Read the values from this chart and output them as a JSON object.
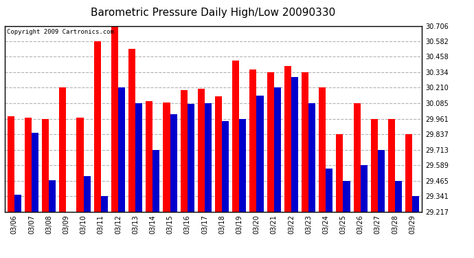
{
  "title": "Barometric Pressure Daily High/Low 20090330",
  "copyright": "Copyright 2009 Cartronics.com",
  "dates": [
    "03/06",
    "03/07",
    "03/08",
    "03/09",
    "03/10",
    "03/11",
    "03/12",
    "03/13",
    "03/14",
    "03/15",
    "03/16",
    "03/17",
    "03/18",
    "03/19",
    "03/20",
    "03/21",
    "03/22",
    "03/23",
    "03/24",
    "03/25",
    "03/26",
    "03/27",
    "03/28",
    "03/29"
  ],
  "highs": [
    29.98,
    29.97,
    29.96,
    30.21,
    29.97,
    30.582,
    30.706,
    30.52,
    30.1,
    30.09,
    30.19,
    30.2,
    30.14,
    30.43,
    30.355,
    30.334,
    30.385,
    30.334,
    30.21,
    29.837,
    30.085,
    29.961,
    29.961,
    29.837
  ],
  "lows": [
    29.35,
    29.85,
    29.47,
    29.217,
    29.5,
    29.341,
    30.21,
    30.085,
    29.713,
    30.0,
    30.08,
    30.085,
    29.94,
    29.961,
    30.145,
    30.21,
    30.295,
    30.085,
    29.56,
    29.465,
    29.589,
    29.713,
    29.465,
    29.341
  ],
  "high_color": "#ff0000",
  "low_color": "#0000cc",
  "bg_color": "#ffffff",
  "grid_color": "#aaaaaa",
  "ymin": 29.217,
  "ymax": 30.706,
  "yticks": [
    29.217,
    29.341,
    29.465,
    29.589,
    29.713,
    29.837,
    29.961,
    30.085,
    30.21,
    30.334,
    30.458,
    30.582,
    30.706
  ],
  "title_fontsize": 11,
  "copyright_fontsize": 6.5,
  "bar_width": 0.4
}
